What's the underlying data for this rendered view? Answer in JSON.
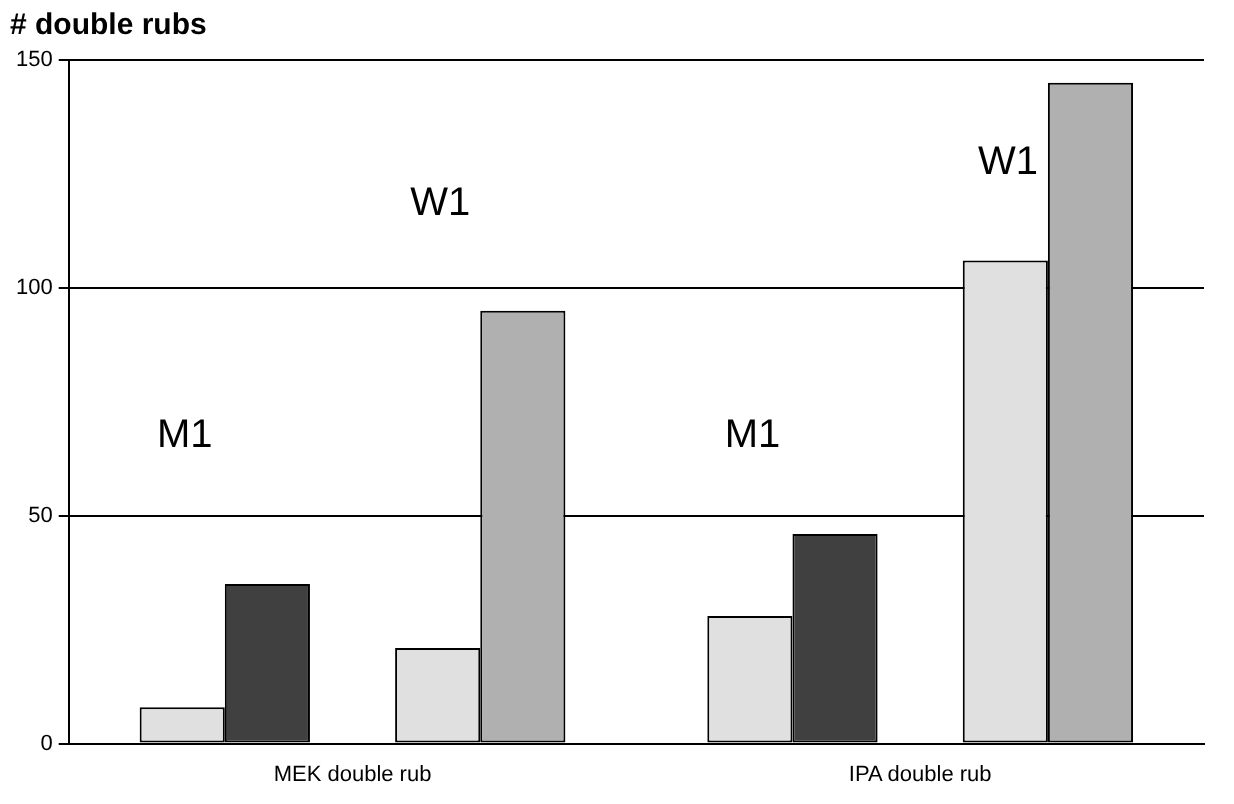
{
  "chart_data": {
    "type": "bar",
    "ylabel": "# double rubs",
    "categories": [
      "MEK double rub",
      "IPA double rub"
    ],
    "series": [
      {
        "color": "#e0e0e0",
        "values": [
          8,
          28
        ]
      },
      {
        "color": "#404040",
        "values": [
          35,
          46
        ]
      },
      {
        "color": "#e0e0e0",
        "values": [
          21,
          106
        ]
      },
      {
        "color": "#b0b0b0",
        "values": [
          95,
          145
        ]
      }
    ],
    "ylim": [
      0,
      150
    ],
    "yticks": [
      0,
      50,
      100,
      150
    ],
    "grid": "y",
    "legend": false,
    "annotations": [
      "M1",
      "W1",
      "M1",
      "W1"
    ]
  }
}
